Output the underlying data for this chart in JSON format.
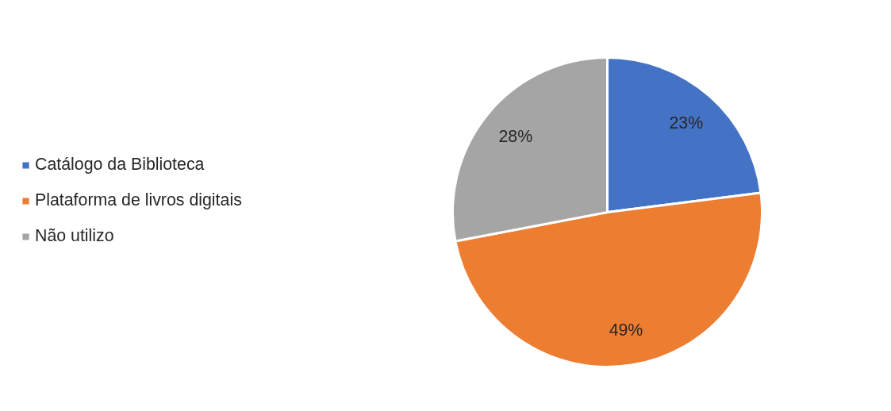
{
  "chart_data": {
    "type": "pie",
    "categories": [
      "Catálogo da Biblioteca",
      "Plataforma de livros digitais",
      "Não utilizo"
    ],
    "values": [
      23,
      49,
      28
    ],
    "colors": [
      "#4472c4",
      "#ed7d31",
      "#a5a5a5"
    ],
    "value_labels": [
      "23%",
      "49%",
      "28%"
    ],
    "legend": "left"
  }
}
